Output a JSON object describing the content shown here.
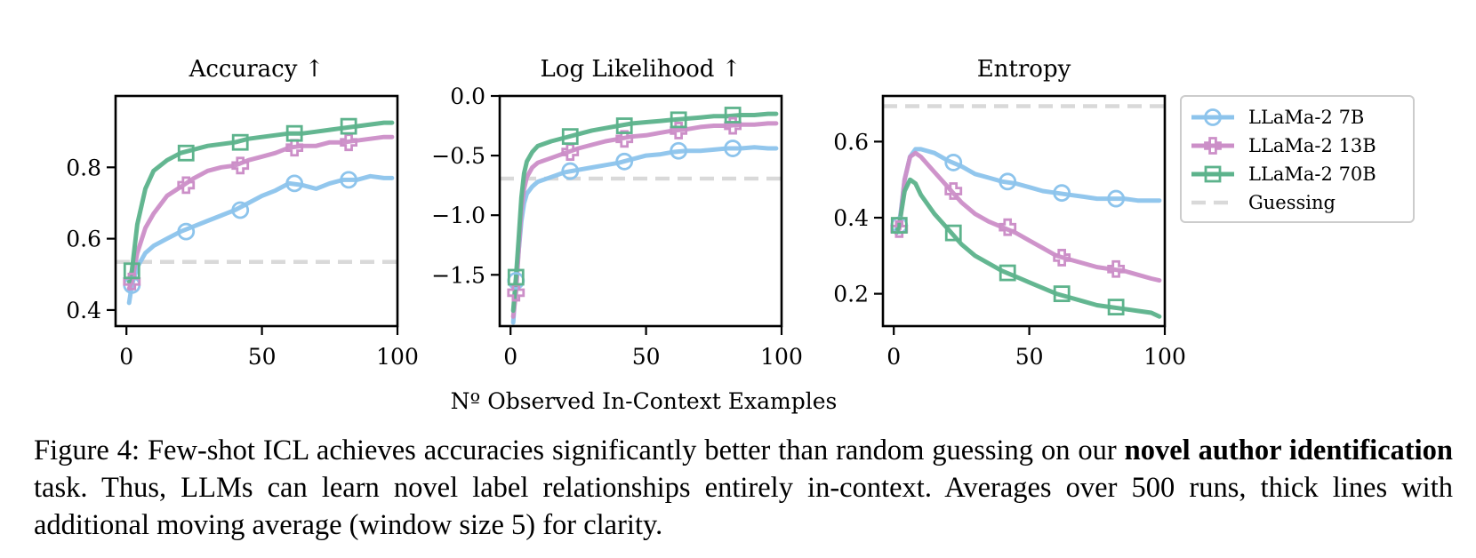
{
  "chart_data": {
    "type": "line",
    "shared_xlabel": "Nº Observed In-Context Examples",
    "legend": {
      "placement": "right",
      "entries": [
        "LLaMa-2 7B",
        "LLaMa-2 13B",
        "LLaMa-2 70B",
        "Guessing"
      ]
    },
    "colors": {
      "LLaMa-2 7B": "#8dc4ec",
      "LLaMa-2 13B": "#cc8fc8",
      "LLaMa-2 70B": "#5db38c",
      "Guessing": "#d9d9d9"
    },
    "panels": [
      {
        "title": "Accuracy ↑",
        "xlim": [
          -4,
          100
        ],
        "ylim": [
          0.355,
          1.0
        ],
        "xticks": [
          0,
          50,
          100
        ],
        "yticks": [
          0.4,
          0.6,
          0.8
        ],
        "yticklabels": [
          "0.4",
          "0.6",
          "0.8"
        ],
        "guessing": 0.535,
        "series": [
          {
            "name": "LLaMa-2 7B",
            "marker": "circle",
            "x": [
              1,
              2,
              4,
              7,
              10,
              15,
              20,
              25,
              30,
              35,
              40,
              45,
              50,
              55,
              60,
              65,
              70,
              75,
              80,
              85,
              90,
              95,
              98
            ],
            "y": [
              0.42,
              0.47,
              0.52,
              0.56,
              0.58,
              0.6,
              0.62,
              0.635,
              0.65,
              0.665,
              0.68,
              0.7,
              0.72,
              0.735,
              0.755,
              0.75,
              0.74,
              0.755,
              0.765,
              0.765,
              0.775,
              0.77,
              0.77
            ],
            "markers_x": [
              2,
              22,
              42,
              62,
              82
            ],
            "markers_y": [
              0.47,
              0.62,
              0.68,
              0.755,
              0.765
            ]
          },
          {
            "name": "LLaMa-2 13B",
            "marker": "plus",
            "x": [
              1,
              2,
              4,
              7,
              10,
              15,
              20,
              25,
              30,
              35,
              40,
              45,
              50,
              55,
              60,
              65,
              70,
              75,
              80,
              85,
              90,
              95,
              98
            ],
            "y": [
              0.46,
              0.48,
              0.56,
              0.63,
              0.67,
              0.72,
              0.745,
              0.77,
              0.79,
              0.8,
              0.805,
              0.82,
              0.83,
              0.84,
              0.855,
              0.86,
              0.86,
              0.87,
              0.87,
              0.875,
              0.88,
              0.885,
              0.885
            ],
            "markers_x": [
              2,
              22,
              42,
              62,
              82
            ],
            "markers_y": [
              0.48,
              0.75,
              0.805,
              0.855,
              0.87
            ]
          },
          {
            "name": "LLaMa-2 70B",
            "marker": "square",
            "x": [
              1,
              2,
              4,
              7,
              10,
              15,
              20,
              25,
              30,
              35,
              40,
              45,
              50,
              55,
              60,
              65,
              70,
              75,
              80,
              85,
              90,
              95,
              98
            ],
            "y": [
              0.48,
              0.51,
              0.64,
              0.74,
              0.79,
              0.82,
              0.84,
              0.85,
              0.86,
              0.865,
              0.87,
              0.88,
              0.885,
              0.89,
              0.895,
              0.895,
              0.9,
              0.905,
              0.91,
              0.915,
              0.92,
              0.925,
              0.925
            ],
            "markers_x": [
              2,
              22,
              42,
              62,
              82
            ],
            "markers_y": [
              0.51,
              0.84,
              0.87,
              0.895,
              0.915
            ]
          }
        ]
      },
      {
        "title": "Log Likelihood ↑",
        "xlim": [
          -4,
          100
        ],
        "ylim": [
          -1.93,
          0.0
        ],
        "xticks": [
          0,
          50,
          100
        ],
        "yticks": [
          -1.5,
          -1.0,
          -0.5,
          0.0
        ],
        "yticklabels": [
          "−1.5",
          "−1.0",
          "−0.5",
          "0.0"
        ],
        "guessing": -0.693,
        "series": [
          {
            "name": "LLaMa-2 7B",
            "marker": "circle",
            "x": [
              1,
              2,
              3,
              4,
              5,
              6,
              8,
              10,
              15,
              20,
              25,
              30,
              35,
              40,
              45,
              50,
              55,
              60,
              65,
              70,
              75,
              80,
              85,
              90,
              95,
              98
            ],
            "y": [
              -1.9,
              -1.55,
              -1.3,
              -1.05,
              -0.9,
              -0.82,
              -0.76,
              -0.72,
              -0.68,
              -0.64,
              -0.62,
              -0.6,
              -0.58,
              -0.56,
              -0.53,
              -0.5,
              -0.49,
              -0.47,
              -0.46,
              -0.46,
              -0.45,
              -0.44,
              -0.44,
              -0.43,
              -0.44,
              -0.44
            ],
            "markers_x": [
              2,
              22,
              42,
              62,
              82
            ],
            "markers_y": [
              -1.55,
              -0.63,
              -0.55,
              -0.46,
              -0.44
            ]
          },
          {
            "name": "LLaMa-2 13B",
            "marker": "plus",
            "x": [
              1,
              2,
              3,
              4,
              5,
              6,
              8,
              10,
              15,
              20,
              25,
              30,
              35,
              40,
              45,
              50,
              55,
              60,
              65,
              70,
              75,
              80,
              85,
              90,
              95,
              98
            ],
            "y": [
              -1.85,
              -1.65,
              -1.3,
              -0.95,
              -0.78,
              -0.68,
              -0.6,
              -0.56,
              -0.52,
              -0.48,
              -0.44,
              -0.41,
              -0.38,
              -0.36,
              -0.34,
              -0.33,
              -0.31,
              -0.29,
              -0.28,
              -0.26,
              -0.25,
              -0.25,
              -0.24,
              -0.24,
              -0.23,
              -0.23
            ],
            "markers_x": [
              2,
              22,
              42,
              62,
              82
            ],
            "markers_y": [
              -1.65,
              -0.47,
              -0.36,
              -0.29,
              -0.25
            ]
          },
          {
            "name": "LLaMa-2 70B",
            "marker": "square",
            "x": [
              1,
              2,
              3,
              4,
              5,
              6,
              8,
              10,
              15,
              20,
              25,
              30,
              35,
              40,
              45,
              50,
              55,
              60,
              65,
              70,
              75,
              80,
              85,
              90,
              95,
              98
            ],
            "y": [
              -1.8,
              -1.52,
              -1.2,
              -0.85,
              -0.65,
              -0.55,
              -0.47,
              -0.42,
              -0.38,
              -0.35,
              -0.32,
              -0.29,
              -0.27,
              -0.25,
              -0.23,
              -0.22,
              -0.21,
              -0.2,
              -0.19,
              -0.18,
              -0.17,
              -0.17,
              -0.16,
              -0.16,
              -0.15,
              -0.15
            ],
            "markers_x": [
              2,
              22,
              42,
              62,
              82
            ],
            "markers_y": [
              -1.52,
              -0.34,
              -0.25,
              -0.2,
              -0.16
            ]
          }
        ]
      },
      {
        "title": "Entropy",
        "xlim": [
          -4,
          100
        ],
        "ylim": [
          0.115,
          0.72
        ],
        "xticks": [
          0,
          50,
          100
        ],
        "yticks": [
          0.2,
          0.4,
          0.6
        ],
        "yticklabels": [
          "0.2",
          "0.4",
          "0.6"
        ],
        "guessing": 0.693,
        "series": [
          {
            "name": "LLaMa-2 7B",
            "marker": "circle",
            "x": [
              1,
              2,
              4,
              6,
              8,
              10,
              15,
              20,
              25,
              30,
              35,
              40,
              45,
              50,
              55,
              60,
              65,
              70,
              75,
              80,
              85,
              90,
              95,
              98
            ],
            "y": [
              0.37,
              0.38,
              0.5,
              0.56,
              0.58,
              0.58,
              0.57,
              0.55,
              0.535,
              0.515,
              0.505,
              0.495,
              0.49,
              0.48,
              0.47,
              0.465,
              0.46,
              0.455,
              0.45,
              0.45,
              0.45,
              0.445,
              0.445,
              0.445
            ],
            "markers_x": [
              2,
              22,
              42,
              62,
              82
            ],
            "markers_y": [
              0.38,
              0.545,
              0.495,
              0.465,
              0.45
            ]
          },
          {
            "name": "LLaMa-2 13B",
            "marker": "plus",
            "x": [
              1,
              2,
              4,
              6,
              8,
              10,
              15,
              20,
              25,
              30,
              35,
              40,
              45,
              50,
              55,
              60,
              65,
              70,
              75,
              80,
              85,
              90,
              95,
              98
            ],
            "y": [
              0.36,
              0.37,
              0.5,
              0.56,
              0.57,
              0.56,
              0.52,
              0.48,
              0.44,
              0.41,
              0.39,
              0.375,
              0.36,
              0.34,
              0.32,
              0.3,
              0.29,
              0.28,
              0.27,
              0.265,
              0.26,
              0.25,
              0.24,
              0.235
            ],
            "markers_x": [
              2,
              22,
              42,
              62,
              82
            ],
            "markers_y": [
              0.37,
              0.47,
              0.375,
              0.295,
              0.265
            ]
          },
          {
            "name": "LLaMa-2 70B",
            "marker": "square",
            "x": [
              1,
              2,
              4,
              6,
              8,
              10,
              15,
              20,
              25,
              30,
              35,
              40,
              45,
              50,
              55,
              60,
              65,
              70,
              75,
              80,
              85,
              90,
              95,
              98
            ],
            "y": [
              0.36,
              0.38,
              0.47,
              0.5,
              0.49,
              0.46,
              0.41,
              0.37,
              0.33,
              0.3,
              0.28,
              0.26,
              0.245,
              0.23,
              0.215,
              0.2,
              0.19,
              0.18,
              0.17,
              0.165,
              0.16,
              0.155,
              0.15,
              0.14
            ],
            "markers_x": [
              2,
              22,
              42,
              62,
              82
            ],
            "markers_y": [
              0.38,
              0.36,
              0.255,
              0.2,
              0.165
            ]
          }
        ]
      }
    ]
  },
  "caption": {
    "lead": "Figure 4: Few-shot ICL achieves accuracies significantly better than random guessing on our ",
    "bold": "novel author identification",
    "rest": " task.  Thus, LLMs can learn novel label relationships entirely in-context. Averages over 500 runs, thick lines with additional moving average (window size 5) for clarity."
  }
}
